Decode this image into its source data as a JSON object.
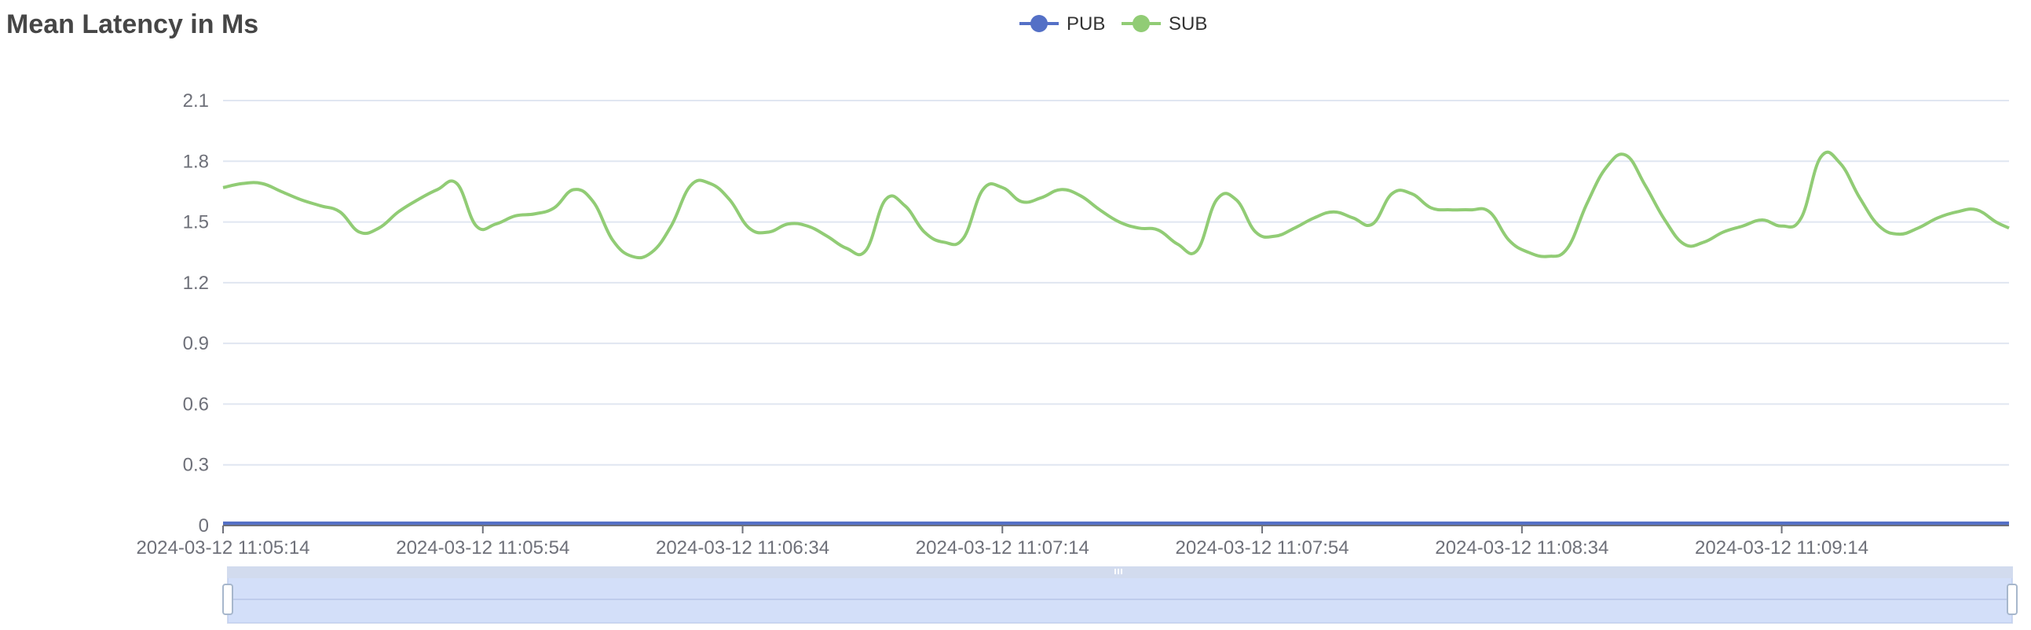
{
  "chart_data": {
    "type": "line",
    "title": "Mean Latency in Ms",
    "xlabel": "",
    "ylabel": "",
    "ylim": [
      0,
      2.1
    ],
    "y_ticks": [
      "0",
      "0.3",
      "0.6",
      "0.9",
      "1.2",
      "1.5",
      "1.8",
      "2.1"
    ],
    "x_tick_labels": [
      "2024-03-12 11:05:14",
      "2024-03-12 11:05:54",
      "2024-03-12 11:06:34",
      "2024-03-12 11:07:14",
      "2024-03-12 11:07:54",
      "2024-03-12 11:08:34",
      "2024-03-12 11:09:14"
    ],
    "x_range_seconds": [
      0,
      275
    ],
    "grid": true,
    "legend_position": "top-center",
    "series": [
      {
        "name": "PUB",
        "color": "#5470c6",
        "x": [
          0,
          275
        ],
        "values": [
          0.01,
          0.01
        ]
      },
      {
        "name": "SUB",
        "color": "#91cc75",
        "x": [
          0,
          3,
          6,
          9,
          12,
          15,
          18,
          21,
          24,
          27,
          30,
          33,
          36,
          39,
          42,
          45,
          48,
          51,
          54,
          57,
          60,
          63,
          66,
          69,
          72,
          75,
          78,
          81,
          84,
          87,
          90,
          93,
          96,
          99,
          102,
          105,
          108,
          111,
          114,
          117,
          120,
          123,
          126,
          129,
          132,
          135,
          138,
          141,
          144,
          147,
          150,
          153,
          156,
          159,
          162,
          165,
          168,
          171,
          174,
          177,
          180,
          183,
          186,
          189,
          192,
          195,
          198,
          201,
          204,
          207,
          210,
          213,
          216,
          219,
          222,
          225,
          228,
          231,
          234,
          237,
          240,
          243,
          246,
          249,
          252,
          255,
          258,
          261,
          264,
          267,
          270,
          273,
          275
        ],
        "values": [
          1.67,
          1.69,
          1.69,
          1.65,
          1.61,
          1.58,
          1.55,
          1.45,
          1.47,
          1.55,
          1.61,
          1.66,
          1.69,
          1.48,
          1.49,
          1.53,
          1.54,
          1.57,
          1.66,
          1.6,
          1.41,
          1.33,
          1.35,
          1.48,
          1.68,
          1.69,
          1.61,
          1.47,
          1.45,
          1.49,
          1.48,
          1.43,
          1.37,
          1.36,
          1.61,
          1.58,
          1.45,
          1.4,
          1.42,
          1.66,
          1.67,
          1.6,
          1.62,
          1.66,
          1.63,
          1.56,
          1.5,
          1.47,
          1.46,
          1.39,
          1.36,
          1.61,
          1.61,
          1.45,
          1.43,
          1.47,
          1.52,
          1.55,
          1.52,
          1.49,
          1.64,
          1.64,
          1.57,
          1.56,
          1.56,
          1.55,
          1.41,
          1.35,
          1.33,
          1.37,
          1.59,
          1.77,
          1.83,
          1.68,
          1.51,
          1.39,
          1.4,
          1.45,
          1.48,
          1.51,
          1.48,
          1.52,
          1.82,
          1.79,
          1.62,
          1.48,
          1.44,
          1.47,
          1.52,
          1.55,
          1.56,
          1.5,
          1.47
        ]
      }
    ],
    "data_zoom": {
      "start_percent": 0,
      "end_percent": 100
    }
  }
}
